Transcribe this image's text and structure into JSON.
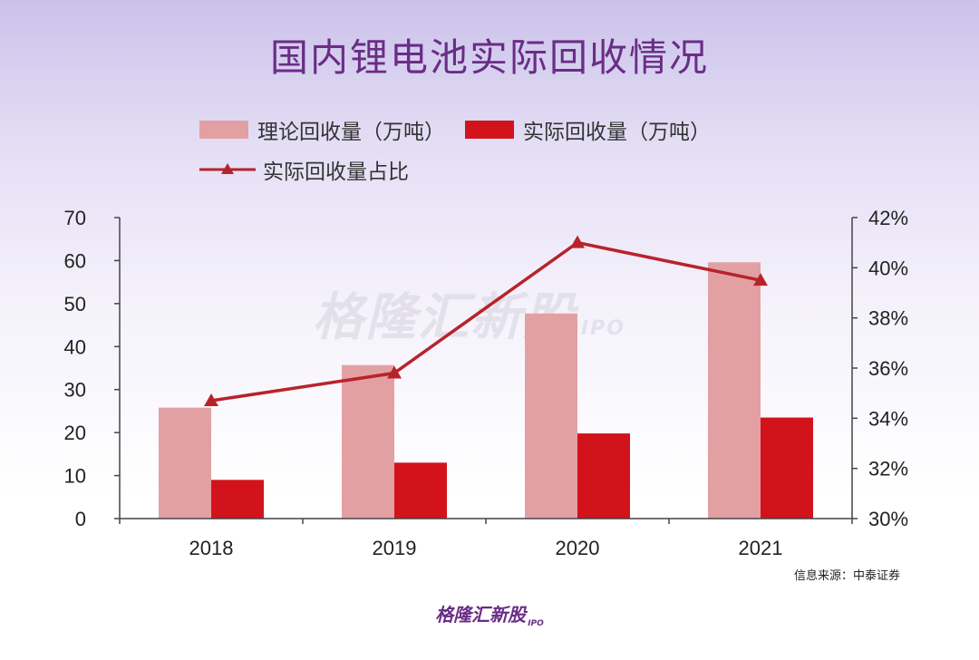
{
  "title": "国内锂电池实际回收情况",
  "legend": {
    "series1": "理论回收量（万吨）",
    "series2": "实际回收量（万吨）",
    "series3": "实际回收量占比"
  },
  "colors": {
    "theory": "#e3a0a3",
    "actual": "#d3131c",
    "ratio": "#b8232b",
    "title": "#6a2d86"
  },
  "source": "信息来源：中泰证券",
  "watermark": "格隆汇新股",
  "watermark_sub": "IPO",
  "footer_logo": "格隆汇新股",
  "footer_logo_sub": "IPO",
  "chart_data": {
    "type": "bar",
    "categories": [
      "2018",
      "2019",
      "2020",
      "2021"
    ],
    "series": [
      {
        "name": "理论回收量（万吨）",
        "type": "bar",
        "axis": "left",
        "values": [
          25.8,
          35.7,
          47.7,
          59.6
        ]
      },
      {
        "name": "实际回收量（万吨）",
        "type": "bar",
        "axis": "left",
        "values": [
          9.0,
          13.0,
          19.8,
          23.5
        ]
      },
      {
        "name": "实际回收量占比",
        "type": "line",
        "axis": "right",
        "values": [
          34.7,
          35.8,
          41.0,
          39.5
        ]
      }
    ],
    "ylim": [
      0,
      70
    ],
    "yticks": [
      0,
      10,
      20,
      30,
      40,
      50,
      60,
      70
    ],
    "y2lim": [
      30,
      42
    ],
    "y2ticks": [
      "30%",
      "32%",
      "34%",
      "36%",
      "38%",
      "40%",
      "42%"
    ],
    "legend_position": "top-left",
    "grid": false
  }
}
